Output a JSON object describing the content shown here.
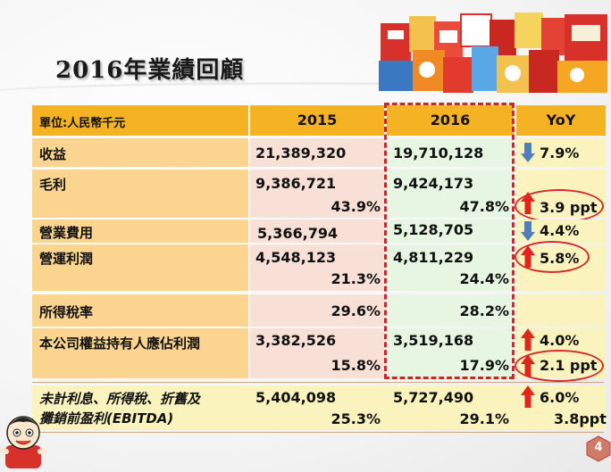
{
  "title": "2016年業績回顧",
  "header": {
    "unit": "單位:人民幣千元",
    "col2015": "2015",
    "col2016": "2016",
    "colyoy": "YoY"
  },
  "rows": {
    "revenue": {
      "label": "收益",
      "v2015": "21,389,320",
      "v2016": "19,710,128",
      "yoy": "7.9%",
      "dir": "down"
    },
    "gross_profit": {
      "label": "毛利",
      "v2015": "9,386,721",
      "v2016": "9,424,173",
      "m2015": "43.9%",
      "m2016": "47.8%",
      "yoy": "3.9 ppt",
      "dir": "up"
    },
    "opex": {
      "label": "營業費用",
      "v2015": "5,366,794",
      "v2016": "5,128,705",
      "yoy": "4.4%",
      "dir": "down"
    },
    "op_profit": {
      "label": "營運利潤",
      "v2015": "4,548,123",
      "v2016": "4,811,229",
      "m2015": "21.3%",
      "m2016": "24.4%",
      "yoy": "5.8%",
      "dir": "up"
    },
    "tax_rate": {
      "label": "所得稅率",
      "v2015": "29.6%",
      "v2016": "28.2%"
    },
    "net_profit": {
      "label": "本公司權益持有人應佔利潤",
      "v2015": "3,382,526",
      "v2016": "3,519,168",
      "m2015": "15.8%",
      "m2016": "17.9%",
      "yoy": "4.0%",
      "yoy2": "2.1 ppt",
      "dir": "up"
    },
    "ebitda": {
      "label1": "未計利息、所得稅、折舊及",
      "label2": "攤銷前盈利(EBITDA)",
      "v2015": "5,404,098",
      "v2016": "5,727,490",
      "m2015": "25.3%",
      "m2016": "29.1%",
      "yoy": "6.0%",
      "yoy2": "3.8ppt",
      "dir": "up"
    }
  },
  "page_number": "4",
  "colors": {
    "header": "#f5b323",
    "label": "#fbd48f",
    "col2015": "#f9e0d6",
    "col2016": "#e6f6e2",
    "yoy": "#fbf3be",
    "up": "#e0251b",
    "down": "#4f7fb8",
    "highlight": "#d42a2a"
  },
  "icons": [
    "product-photo",
    "mascot-icon",
    "page-number-badge",
    "arrow-up-icon",
    "arrow-down-icon"
  ]
}
